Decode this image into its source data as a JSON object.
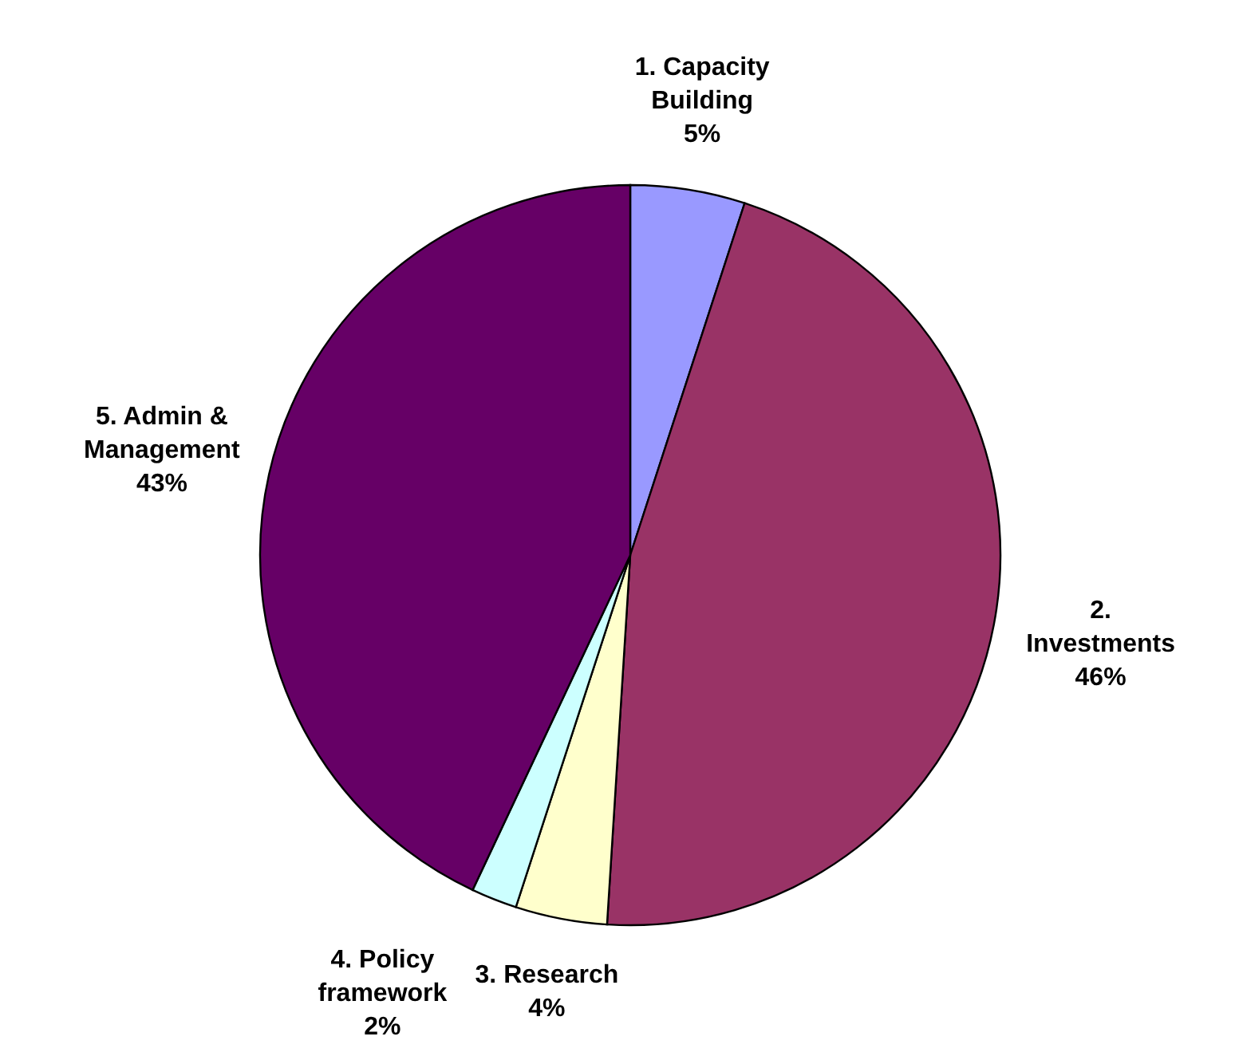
{
  "chart_data": {
    "type": "pie",
    "categories": [
      "1. Capacity Building",
      "2. Investments",
      "3. Research",
      "4. Policy framework",
      "5. Admin & Management"
    ],
    "values": [
      5,
      46,
      4,
      2,
      43
    ],
    "colors": [
      "#9999ff",
      "#993366",
      "#ffffcc",
      "#ccffff",
      "#660066"
    ],
    "value_labels": [
      "5%",
      "46%",
      "4%",
      "2%",
      "43%"
    ]
  }
}
